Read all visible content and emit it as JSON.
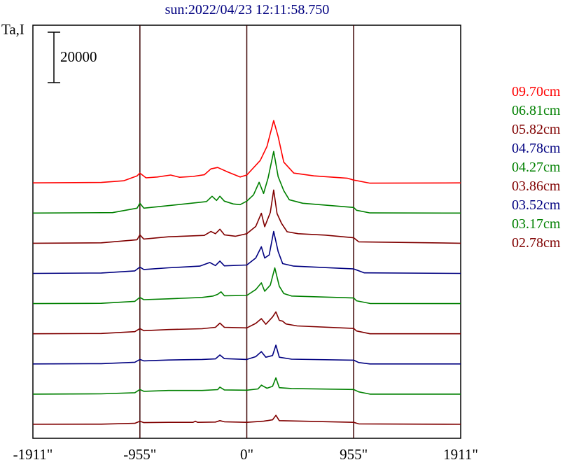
{
  "chart_data": {
    "type": "line",
    "title": "sun:2022/04/23 12:11:58.750",
    "ylabel": "Ta,I",
    "scale_bar_label": "20000",
    "scale_bar_value": 20000,
    "xlim": [
      -1911,
      1911
    ],
    "x_ticks": [
      {
        "value": -1911,
        "label": "-1911\""
      },
      {
        "value": -955,
        "label": "-955\""
      },
      {
        "value": 0,
        "label": "0\""
      },
      {
        "value": 955,
        "label": "955\""
      },
      {
        "value": 1911,
        "label": "1911\""
      }
    ],
    "vertical_lines": [
      -955,
      0,
      955
    ],
    "legend_position": "right",
    "offset_step": 10000,
    "series": [
      {
        "name": "09.70cm",
        "color": "#ff0000",
        "offset_index": 8,
        "points": [
          [
            -1911,
            0
          ],
          [
            -1300,
            300
          ],
          [
            -1100,
            1500
          ],
          [
            -980,
            5000
          ],
          [
            -955,
            7000
          ],
          [
            -900,
            3600
          ],
          [
            -800,
            4200
          ],
          [
            -680,
            5600
          ],
          [
            -600,
            4000
          ],
          [
            -480,
            4600
          ],
          [
            -380,
            5800
          ],
          [
            -320,
            10000
          ],
          [
            -260,
            11000
          ],
          [
            -170,
            7800
          ],
          [
            -60,
            4200
          ],
          [
            0,
            5600
          ],
          [
            120,
            16000
          ],
          [
            180,
            26000
          ],
          [
            240,
            44500
          ],
          [
            280,
            33000
          ],
          [
            330,
            14800
          ],
          [
            420,
            7000
          ],
          [
            600,
            5000
          ],
          [
            900,
            3300
          ],
          [
            955,
            2000
          ],
          [
            1100,
            -200
          ],
          [
            1911,
            0
          ]
        ]
      },
      {
        "name": "06.81cm",
        "color": "#008000",
        "offset_index": 7,
        "points": [
          [
            -1911,
            0
          ],
          [
            -1200,
            300
          ],
          [
            -980,
            3500
          ],
          [
            -955,
            7000
          ],
          [
            -920,
            3500
          ],
          [
            -700,
            5300
          ],
          [
            -360,
            8200
          ],
          [
            -310,
            12000
          ],
          [
            -270,
            9000
          ],
          [
            -240,
            12000
          ],
          [
            -200,
            8500
          ],
          [
            -120,
            6500
          ],
          [
            -60,
            6000
          ],
          [
            0,
            8500
          ],
          [
            60,
            13000
          ],
          [
            110,
            22000
          ],
          [
            150,
            14000
          ],
          [
            190,
            25000
          ],
          [
            240,
            44000
          ],
          [
            280,
            26000
          ],
          [
            330,
            16000
          ],
          [
            380,
            9500
          ],
          [
            500,
            7000
          ],
          [
            955,
            4000
          ],
          [
            980,
            2000
          ],
          [
            1100,
            100
          ],
          [
            1911,
            0
          ]
        ]
      },
      {
        "name": "05.82cm",
        "color": "#800000",
        "offset_index": 6,
        "points": [
          [
            -1911,
            0
          ],
          [
            -1300,
            300
          ],
          [
            -980,
            2500
          ],
          [
            -955,
            6000
          ],
          [
            -920,
            3000
          ],
          [
            -700,
            4600
          ],
          [
            -380,
            5600
          ],
          [
            -320,
            8400
          ],
          [
            -280,
            6800
          ],
          [
            -240,
            10000
          ],
          [
            -200,
            6000
          ],
          [
            -100,
            5000
          ],
          [
            0,
            6800
          ],
          [
            80,
            12000
          ],
          [
            130,
            21400
          ],
          [
            160,
            11800
          ],
          [
            210,
            22000
          ],
          [
            240,
            38000
          ],
          [
            270,
            21200
          ],
          [
            310,
            14200
          ],
          [
            360,
            8200
          ],
          [
            460,
            6800
          ],
          [
            700,
            5800
          ],
          [
            955,
            3900
          ],
          [
            1000,
            1000
          ],
          [
            1911,
            0
          ]
        ]
      },
      {
        "name": "04.78cm",
        "color": "#000080",
        "offset_index": 5,
        "points": [
          [
            -1911,
            0
          ],
          [
            -1300,
            300
          ],
          [
            -1000,
            1800
          ],
          [
            -955,
            4500
          ],
          [
            -920,
            2800
          ],
          [
            -700,
            4000
          ],
          [
            -420,
            5200
          ],
          [
            -330,
            7800
          ],
          [
            -280,
            5600
          ],
          [
            -240,
            8800
          ],
          [
            -200,
            5400
          ],
          [
            0,
            6000
          ],
          [
            80,
            11000
          ],
          [
            130,
            19000
          ],
          [
            160,
            11000
          ],
          [
            200,
            13200
          ],
          [
            240,
            30000
          ],
          [
            280,
            15600
          ],
          [
            320,
            7000
          ],
          [
            420,
            5200
          ],
          [
            955,
            3200
          ],
          [
            1050,
            400
          ],
          [
            1911,
            0
          ]
        ]
      },
      {
        "name": "04.27cm",
        "color": "#008000",
        "offset_index": 4,
        "points": [
          [
            -1911,
            0
          ],
          [
            -1300,
            200
          ],
          [
            -1000,
            1600
          ],
          [
            -955,
            4400
          ],
          [
            -920,
            2800
          ],
          [
            -700,
            3400
          ],
          [
            -400,
            4400
          ],
          [
            -300,
            5400
          ],
          [
            -260,
            6600
          ],
          [
            -230,
            8400
          ],
          [
            -200,
            5600
          ],
          [
            0,
            5800
          ],
          [
            80,
            10000
          ],
          [
            130,
            14800
          ],
          [
            160,
            8800
          ],
          [
            210,
            13200
          ],
          [
            250,
            25500
          ],
          [
            290,
            12400
          ],
          [
            330,
            7200
          ],
          [
            400,
            5400
          ],
          [
            955,
            4000
          ],
          [
            980,
            2000
          ],
          [
            1100,
            100
          ],
          [
            1911,
            0
          ]
        ]
      },
      {
        "name": "03.86cm",
        "color": "#800000",
        "offset_index": 3,
        "points": [
          [
            -1911,
            0
          ],
          [
            -1300,
            200
          ],
          [
            -1000,
            1500
          ],
          [
            -955,
            3700
          ],
          [
            -920,
            2200
          ],
          [
            -700,
            3000
          ],
          [
            -400,
            3600
          ],
          [
            -280,
            4600
          ],
          [
            -240,
            7600
          ],
          [
            -200,
            4600
          ],
          [
            0,
            4200
          ],
          [
            80,
            7400
          ],
          [
            130,
            10800
          ],
          [
            170,
            6800
          ],
          [
            230,
            12000
          ],
          [
            260,
            15600
          ],
          [
            290,
            9600
          ],
          [
            320,
            9000
          ],
          [
            350,
            7000
          ],
          [
            450,
            5600
          ],
          [
            955,
            3800
          ],
          [
            980,
            2000
          ],
          [
            1100,
            0
          ],
          [
            1911,
            0
          ]
        ]
      },
      {
        "name": "03.52cm",
        "color": "#000080",
        "offset_index": 2,
        "points": [
          [
            -1911,
            0
          ],
          [
            -1300,
            200
          ],
          [
            -1000,
            1200
          ],
          [
            -955,
            3200
          ],
          [
            -920,
            2200
          ],
          [
            -700,
            2800
          ],
          [
            -400,
            3200
          ],
          [
            -280,
            3600
          ],
          [
            -240,
            6400
          ],
          [
            -200,
            3800
          ],
          [
            0,
            3200
          ],
          [
            80,
            5200
          ],
          [
            130,
            8800
          ],
          [
            170,
            4800
          ],
          [
            230,
            6000
          ],
          [
            260,
            13400
          ],
          [
            290,
            4800
          ],
          [
            400,
            3400
          ],
          [
            955,
            2700
          ],
          [
            1000,
            1000
          ],
          [
            1100,
            0
          ],
          [
            1911,
            0
          ]
        ]
      },
      {
        "name": "03.17cm",
        "color": "#008000",
        "offset_index": 1,
        "points": [
          [
            -1911,
            0
          ],
          [
            -1300,
            200
          ],
          [
            -1000,
            1000
          ],
          [
            -955,
            3300
          ],
          [
            -920,
            2000
          ],
          [
            -700,
            2600
          ],
          [
            -400,
            2600
          ],
          [
            -260,
            3200
          ],
          [
            -240,
            5000
          ],
          [
            -200,
            3000
          ],
          [
            0,
            2800
          ],
          [
            100,
            3700
          ],
          [
            130,
            6400
          ],
          [
            180,
            4200
          ],
          [
            230,
            5600
          ],
          [
            260,
            11600
          ],
          [
            290,
            4600
          ],
          [
            400,
            4000
          ],
          [
            955,
            3300
          ],
          [
            1000,
            1600
          ],
          [
            1100,
            0
          ],
          [
            1911,
            0
          ]
        ]
      },
      {
        "name": "02.78cm",
        "color": "#800000",
        "offset_index": 0,
        "points": [
          [
            -1911,
            0
          ],
          [
            -1300,
            100
          ],
          [
            -1000,
            700
          ],
          [
            -955,
            2200
          ],
          [
            -920,
            1200
          ],
          [
            -700,
            1400
          ],
          [
            -480,
            1400
          ],
          [
            -460,
            2200
          ],
          [
            -440,
            1400
          ],
          [
            -280,
            1600
          ],
          [
            -240,
            2600
          ],
          [
            -200,
            1800
          ],
          [
            0,
            1400
          ],
          [
            150,
            2200
          ],
          [
            230,
            3200
          ],
          [
            260,
            6400
          ],
          [
            290,
            2600
          ],
          [
            400,
            2400
          ],
          [
            955,
            1400
          ],
          [
            1000,
            300
          ],
          [
            1911,
            0
          ]
        ]
      }
    ]
  }
}
